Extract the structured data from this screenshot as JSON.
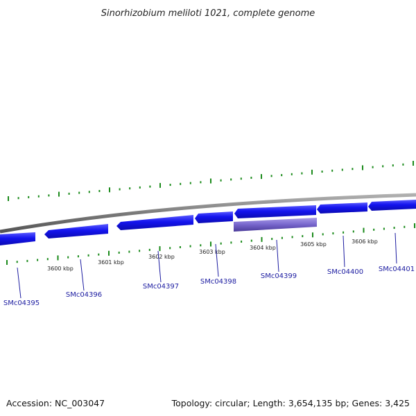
{
  "title": "Sinorhizobium meliloti 1021, complete genome",
  "accession": "Accession: NC_003047",
  "summary": "Topology: circular; Length: 3,654,135 bp; Genes: 3,425",
  "colors": {
    "gene_forward": "#1010e8",
    "gene_highlight": "#7766cc",
    "backbone": "#888888",
    "ticks": "#1a8a1a",
    "label_line": "#1a1aa0"
  },
  "scale_labels": [
    "3600 kbp",
    "3601 kbp",
    "3602 kbp",
    "3603 kbp",
    "3604 kbp",
    "3605 kbp",
    "3606 kbp"
  ],
  "genes": [
    "SMc04395",
    "SMc04396",
    "SMc04397",
    "SMc04398",
    "SMc04399",
    "SMc04400",
    "SMc04401"
  ]
}
